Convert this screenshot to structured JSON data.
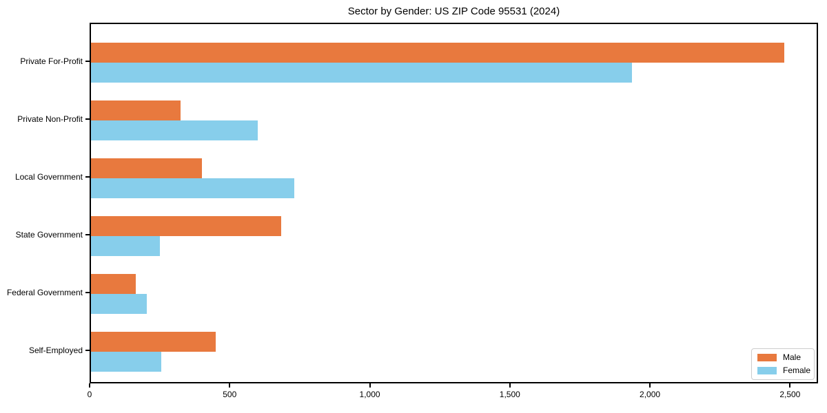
{
  "chart_data": {
    "type": "bar",
    "orientation": "horizontal",
    "title": "Sector by Gender: US ZIP Code 95531 (2024)",
    "categories": [
      "Private For-Profit",
      "Private Non-Profit",
      "Local Government",
      "State Government",
      "Federal Government",
      "Self-Employed"
    ],
    "series": [
      {
        "name": "Male",
        "color": "#E8793E",
        "values": [
          2475,
          320,
          395,
          680,
          160,
          445
        ]
      },
      {
        "name": "Female",
        "color": "#87CEEB",
        "values": [
          1930,
          595,
          725,
          245,
          200,
          250
        ]
      }
    ],
    "xlabel": "",
    "ylabel": "",
    "xlim": [
      0,
      2600
    ],
    "xticks": [
      0,
      500,
      1000,
      1500,
      2000,
      2500
    ],
    "xtick_labels": [
      "0",
      "500",
      "1,000",
      "1,500",
      "2,000",
      "2,500"
    ],
    "grid": false,
    "legend_position": "lower right",
    "axis_color": "#000000",
    "background_color": "#ffffff"
  }
}
